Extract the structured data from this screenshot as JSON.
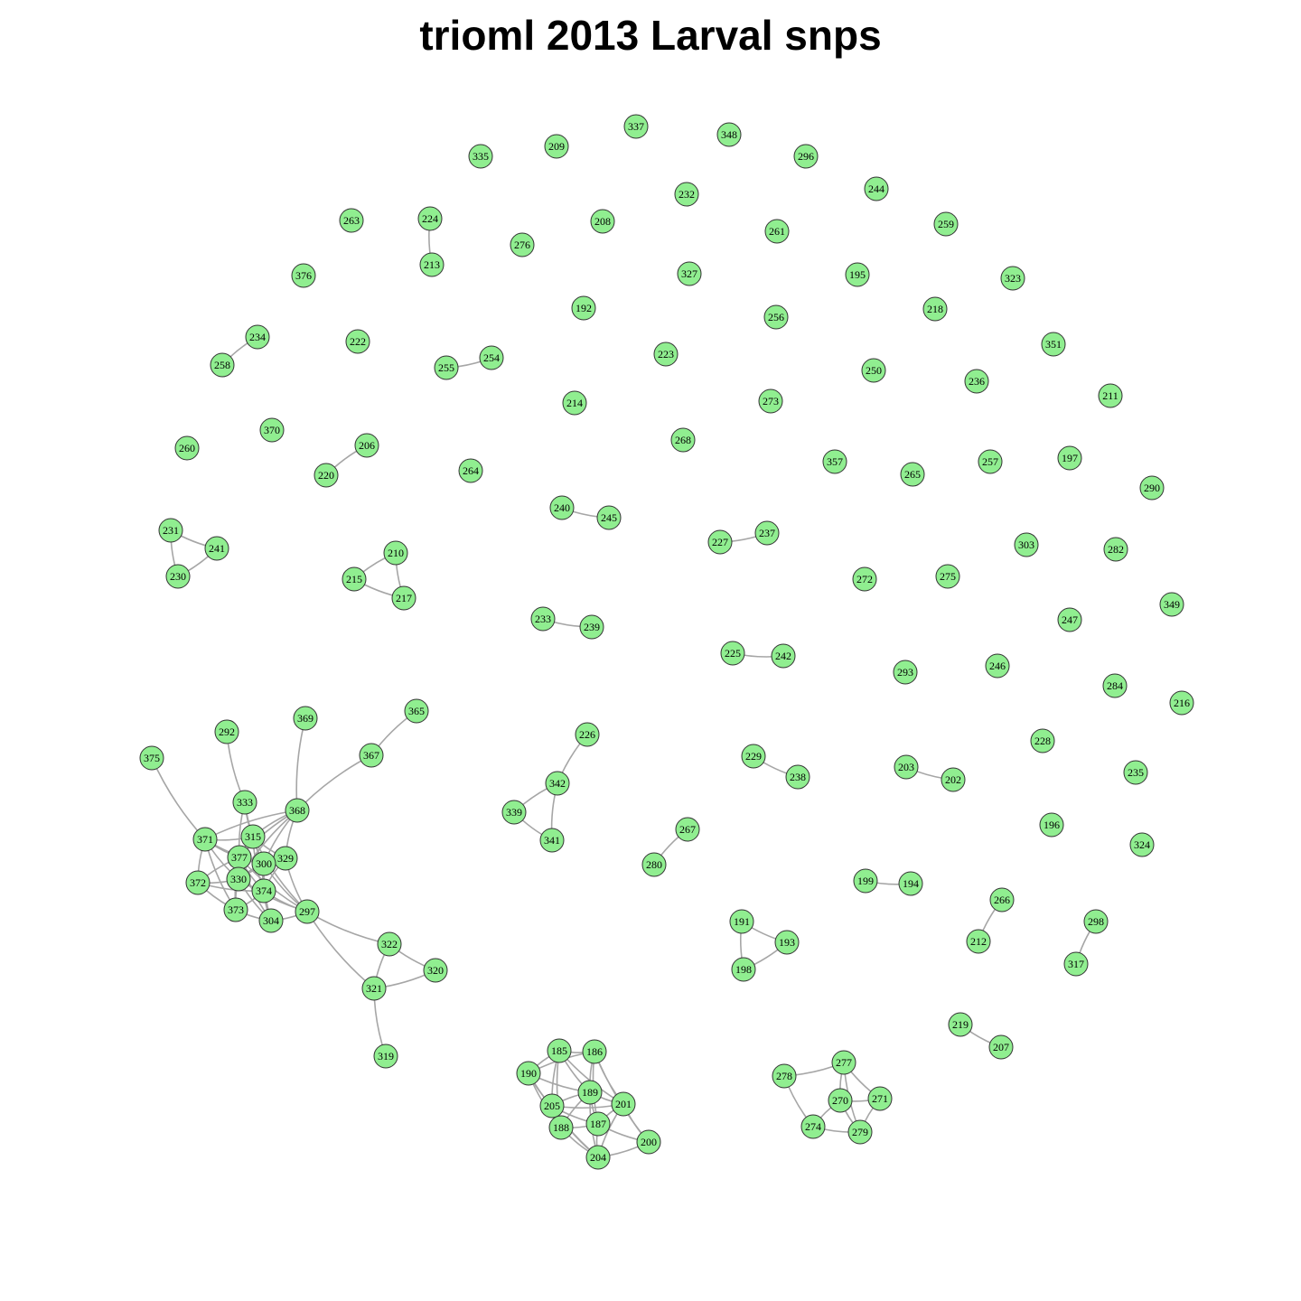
{
  "title": "trioml 2013 Larval snps",
  "colors": {
    "node_fill": "#90ee90",
    "node_stroke": "#333333",
    "edge": "#a6a6a6"
  },
  "nodes": [
    "337",
    "348",
    "209",
    "335",
    "296",
    "244",
    "232",
    "208",
    "224",
    "263",
    "276",
    "261",
    "259",
    "213",
    "327",
    "195",
    "376",
    "323",
    "192",
    "256",
    "218",
    "234",
    "222",
    "351",
    "254",
    "255",
    "223",
    "258",
    "250",
    "236",
    "214",
    "273",
    "211",
    "370",
    "206",
    "260",
    "268",
    "357",
    "265",
    "257",
    "197",
    "220",
    "264",
    "290",
    "240",
    "245",
    "237",
    "227",
    "303",
    "282",
    "231",
    "241",
    "210",
    "272",
    "275",
    "215",
    "230",
    "217",
    "349",
    "233",
    "239",
    "247",
    "225",
    "242",
    "293",
    "246",
    "284",
    "216",
    "226",
    "365",
    "369",
    "292",
    "228",
    "375",
    "367",
    "229",
    "203",
    "238",
    "202",
    "235",
    "342",
    "333",
    "368",
    "339",
    "341",
    "267",
    "196",
    "315",
    "371",
    "324",
    "329",
    "377",
    "300",
    "280",
    "330",
    "372",
    "199",
    "194",
    "374",
    "266",
    "373",
    "297",
    "304",
    "191",
    "298",
    "193",
    "322",
    "212",
    "198",
    "320",
    "321",
    "317",
    "319",
    "219",
    "207",
    "185",
    "186",
    "277",
    "190",
    "189",
    "278",
    "271",
    "201",
    "205",
    "270",
    "187",
    "188",
    "274",
    "279",
    "200",
    "204"
  ],
  "edges": [
    [
      "224",
      "213"
    ],
    [
      "234",
      "258"
    ],
    [
      "255",
      "254"
    ],
    [
      "206",
      "220"
    ],
    [
      "240",
      "245"
    ],
    [
      "227",
      "237"
    ],
    [
      "231",
      "241"
    ],
    [
      "231",
      "230"
    ],
    [
      "230",
      "241"
    ],
    [
      "210",
      "215"
    ],
    [
      "210",
      "217"
    ],
    [
      "215",
      "217"
    ],
    [
      "233",
      "239"
    ],
    [
      "225",
      "242"
    ],
    [
      "229",
      "238"
    ],
    [
      "203",
      "202"
    ],
    [
      "226",
      "342"
    ],
    [
      "342",
      "339"
    ],
    [
      "342",
      "341"
    ],
    [
      "339",
      "341"
    ],
    [
      "267",
      "280"
    ],
    [
      "199",
      "194"
    ],
    [
      "266",
      "212"
    ],
    [
      "298",
      "317"
    ],
    [
      "219",
      "207"
    ],
    [
      "191",
      "193"
    ],
    [
      "191",
      "198"
    ],
    [
      "198",
      "193"
    ],
    [
      "365",
      "367"
    ],
    [
      "367",
      "368"
    ],
    [
      "369",
      "368"
    ],
    [
      "292",
      "333"
    ],
    [
      "375",
      "371"
    ],
    [
      "333",
      "315"
    ],
    [
      "333",
      "377"
    ],
    [
      "333",
      "300"
    ],
    [
      "368",
      "315"
    ],
    [
      "368",
      "377"
    ],
    [
      "368",
      "300"
    ],
    [
      "368",
      "329"
    ],
    [
      "368",
      "330"
    ],
    [
      "368",
      "371"
    ],
    [
      "371",
      "315"
    ],
    [
      "371",
      "377"
    ],
    [
      "371",
      "300"
    ],
    [
      "371",
      "372"
    ],
    [
      "371",
      "330"
    ],
    [
      "371",
      "373"
    ],
    [
      "315",
      "377"
    ],
    [
      "315",
      "300"
    ],
    [
      "315",
      "329"
    ],
    [
      "315",
      "330"
    ],
    [
      "315",
      "374"
    ],
    [
      "315",
      "297"
    ],
    [
      "377",
      "300"
    ],
    [
      "377",
      "330"
    ],
    [
      "377",
      "374"
    ],
    [
      "377",
      "372"
    ],
    [
      "377",
      "373"
    ],
    [
      "377",
      "304"
    ],
    [
      "377",
      "297"
    ],
    [
      "300",
      "329"
    ],
    [
      "300",
      "330"
    ],
    [
      "300",
      "374"
    ],
    [
      "300",
      "304"
    ],
    [
      "300",
      "297"
    ],
    [
      "329",
      "374"
    ],
    [
      "329",
      "297"
    ],
    [
      "329",
      "330"
    ],
    [
      "372",
      "330"
    ],
    [
      "372",
      "373"
    ],
    [
      "372",
      "374"
    ],
    [
      "330",
      "373"
    ],
    [
      "330",
      "374"
    ],
    [
      "330",
      "304"
    ],
    [
      "330",
      "297"
    ],
    [
      "373",
      "304"
    ],
    [
      "373",
      "374"
    ],
    [
      "374",
      "304"
    ],
    [
      "374",
      "297"
    ],
    [
      "304",
      "297"
    ],
    [
      "297",
      "322"
    ],
    [
      "297",
      "321"
    ],
    [
      "322",
      "321"
    ],
    [
      "322",
      "320"
    ],
    [
      "321",
      "320"
    ],
    [
      "321",
      "319"
    ],
    [
      "185",
      "186"
    ],
    [
      "185",
      "190"
    ],
    [
      "185",
      "189"
    ],
    [
      "185",
      "205"
    ],
    [
      "185",
      "188"
    ],
    [
      "185",
      "201"
    ],
    [
      "186",
      "189"
    ],
    [
      "186",
      "190"
    ],
    [
      "186",
      "201"
    ],
    [
      "186",
      "187"
    ],
    [
      "186",
      "200"
    ],
    [
      "190",
      "205"
    ],
    [
      "190",
      "189"
    ],
    [
      "190",
      "188"
    ],
    [
      "190",
      "204"
    ],
    [
      "189",
      "205"
    ],
    [
      "189",
      "201"
    ],
    [
      "189",
      "187"
    ],
    [
      "189",
      "188"
    ],
    [
      "189",
      "204"
    ],
    [
      "205",
      "188"
    ],
    [
      "205",
      "187"
    ],
    [
      "205",
      "201"
    ],
    [
      "205",
      "204"
    ],
    [
      "201",
      "187"
    ],
    [
      "201",
      "200"
    ],
    [
      "201",
      "204"
    ],
    [
      "188",
      "187"
    ],
    [
      "188",
      "204"
    ],
    [
      "187",
      "204"
    ],
    [
      "187",
      "200"
    ],
    [
      "204",
      "200"
    ],
    [
      "278",
      "277"
    ],
    [
      "278",
      "274"
    ],
    [
      "277",
      "270"
    ],
    [
      "277",
      "271"
    ],
    [
      "277",
      "279"
    ],
    [
      "270",
      "274"
    ],
    [
      "270",
      "279"
    ],
    [
      "270",
      "271"
    ],
    [
      "271",
      "279"
    ],
    [
      "274",
      "279"
    ]
  ]
}
